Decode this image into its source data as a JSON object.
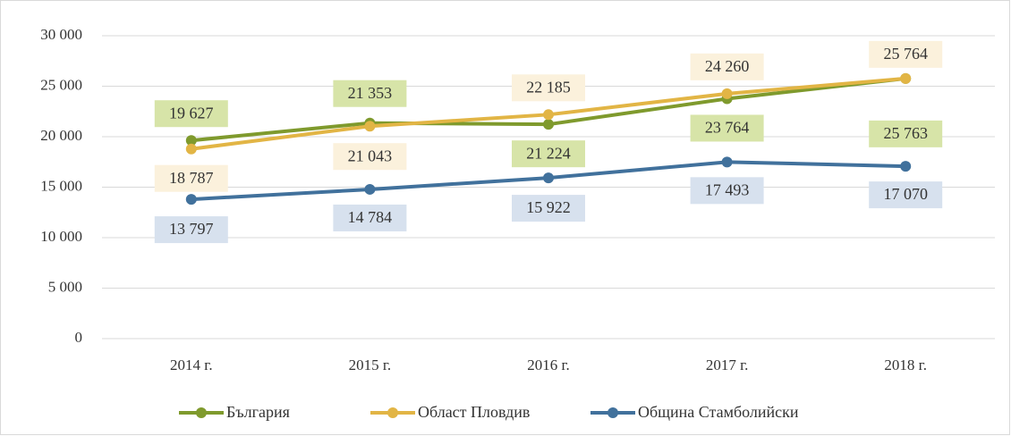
{
  "chart_data": {
    "type": "line",
    "categories": [
      "2014 г.",
      "2015 г.",
      "2016 г.",
      "2017 г.",
      "2018 г."
    ],
    "series": [
      {
        "name": "България",
        "color": "#7f9a2d",
        "label_fill": "#d7e4a8",
        "values": [
          19627,
          21353,
          21224,
          23764,
          25763
        ],
        "value_labels": [
          "19 627",
          "21 353",
          "21 224",
          "23 764",
          "25 763"
        ]
      },
      {
        "name": "Област Пловдив",
        "color": "#e2b545",
        "label_fill": "#fbf1dc",
        "values": [
          18787,
          21043,
          22185,
          24260,
          25764
        ],
        "value_labels": [
          "18 787",
          "21 043",
          "22 185",
          "24 260",
          "25 764"
        ]
      },
      {
        "name": "Община Стамболийски",
        "color": "#41719c",
        "label_fill": "#d7e1ee",
        "values": [
          13797,
          14784,
          15922,
          17493,
          17070
        ],
        "value_labels": [
          "13 797",
          "14 784",
          "15 922",
          "17 493",
          "17 070"
        ]
      }
    ],
    "ylim": [
      0,
      30000
    ],
    "yticks": [
      0,
      {
        "value": 5000,
        "label": "5 000"
      },
      {
        "value": 10000,
        "label": "10 000"
      },
      {
        "value": 15000,
        "label": "15 000"
      },
      {
        "value": 20000,
        "label": "20 000"
      },
      {
        "value": 25000,
        "label": "25 000"
      },
      {
        "value": 30000,
        "label": "30 000"
      }
    ],
    "grid": true,
    "legend": "bottom"
  }
}
